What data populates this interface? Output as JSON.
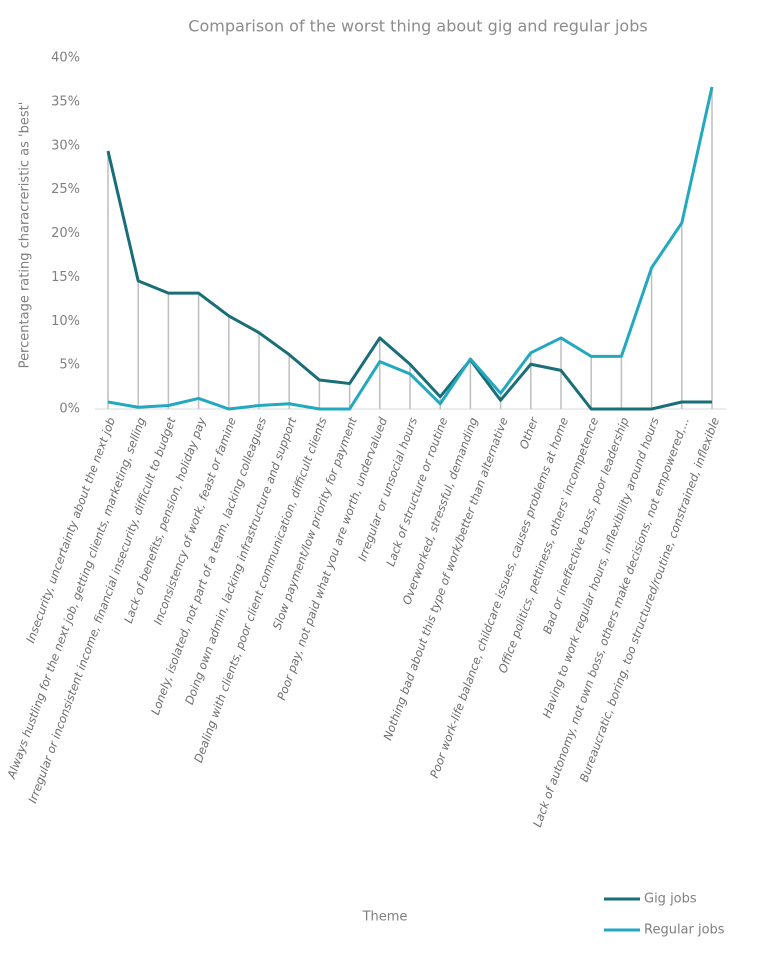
{
  "chart_data": {
    "type": "line",
    "title": "Comparison of the worst thing about gig and regular jobs",
    "x_label": "Theme",
    "y_label": "Percentage rating characreristic as 'best'",
    "categories": [
      "Insecurity, uncertainty about the next job",
      "Always hustling for the next job, getting clients, marketing, selling",
      "Irregular or inconsistent income, financial insecurity, difficult to budget",
      "Lack of benefits, pension, holiday pay",
      "Inconsistency of work, feast or famine",
      "Lonely, isolated, not part of a team, lacking colleagues",
      "Doing own admin, lacking infrastructure and support",
      "Dealing with clients, poor client communication, difficult clients",
      "Slow payment/low priority for payment",
      "Poor pay, not paid what you are worth, undervalued",
      "Irregular or unsocial hours",
      "Lack of structure or routine",
      "Overworked, stressful, demanding",
      "Nothing bad about this type of work/better than alternative",
      "Other",
      "Poor work-life balance, childcare issues, causes problems at home",
      "Office politics, pettiness, others' incompetence",
      "Bad or ineffective boss, poor leadership",
      "Having to work regular hours, inflexibility around hours",
      "Lack of autonomy, not own boss, others make decisions, not empowered,...",
      "Bureaucratic, boring, too structured/routine, constrained, inflexible"
    ],
    "series": [
      {
        "name": "Gig jobs",
        "color": "#1a6e78",
        "values": [
          29.4,
          14.6,
          13.2,
          13.2,
          10.6,
          8.7,
          6.2,
          3.3,
          2.9,
          8.1,
          5.1,
          1.4,
          5.6,
          1.0,
          5.1,
          4.4,
          0,
          0,
          0,
          0.8,
          0.8
        ]
      },
      {
        "name": "Regular jobs",
        "color": "#22a9bf",
        "values": [
          0.8,
          0.2,
          0.4,
          1.2,
          0,
          0.4,
          0.6,
          0,
          0,
          5.4,
          4.0,
          0.6,
          5.7,
          1.8,
          6.4,
          8.1,
          6.0,
          6.0,
          16.1,
          21.2,
          36.7
        ]
      }
    ],
    "ylim": [
      0,
      40
    ],
    "yticks": [
      {
        "value": 0,
        "label": "0%"
      },
      {
        "value": 5,
        "label": "5%"
      },
      {
        "value": 10,
        "label": "10%"
      },
      {
        "value": 15,
        "label": "15%"
      },
      {
        "value": 20,
        "label": "20%"
      },
      {
        "value": 25,
        "label": "25%"
      },
      {
        "value": 30,
        "label": "30%"
      },
      {
        "value": 35,
        "label": "35%"
      },
      {
        "value": 40,
        "label": "40%"
      }
    ],
    "drop_lines": true,
    "legend": "bottom-right"
  }
}
